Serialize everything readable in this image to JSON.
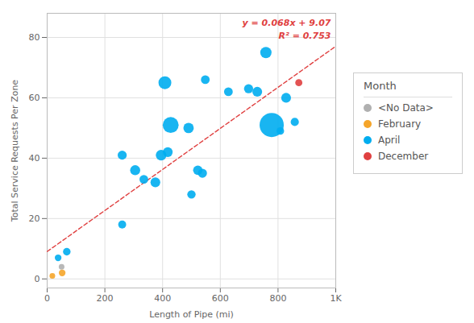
{
  "chart_data": {
    "type": "scatter",
    "xlabel": "Length of Pipe (mi)",
    "ylabel": "Total Service Requests Per Zone",
    "xlim": [
      0,
      1000
    ],
    "ylim": [
      -3,
      88
    ],
    "xticks": [
      0,
      200,
      400,
      600,
      800,
      {
        "value": 1000,
        "label": "1K"
      }
    ],
    "yticks": [
      0,
      20,
      40,
      60,
      80
    ],
    "grid": true,
    "legend": "right",
    "legend_title": "Month",
    "series": [
      {
        "name": "<No Data>",
        "color": "#b0b0b0",
        "x": [
          50
        ],
        "y": [
          4
        ],
        "size": [
          25
        ]
      },
      {
        "name": "February",
        "color": "#f5a52a",
        "x": [
          18,
          52
        ],
        "y": [
          1,
          2
        ],
        "size": [
          25,
          35
        ]
      },
      {
        "name": "April",
        "color": "#00adef",
        "x": [
          38,
          68,
          260,
          260,
          305,
          335,
          375,
          395,
          408,
          418,
          428,
          490,
          500,
          522,
          538,
          548,
          628,
          698,
          728,
          758,
          778,
          808,
          828,
          858
        ],
        "y": [
          7,
          9,
          18,
          41,
          36,
          33,
          32,
          41,
          65,
          42,
          51,
          50,
          28,
          36,
          35,
          66,
          62,
          63,
          62,
          75,
          51,
          49,
          60,
          52
        ],
        "size": [
          35,
          45,
          50,
          65,
          80,
          60,
          75,
          90,
          130,
          75,
          200,
          85,
          55,
          70,
          65,
          60,
          60,
          65,
          75,
          100,
          460,
          45,
          75,
          52
        ]
      },
      {
        "name": "December",
        "color": "#e04040",
        "x": [
          872
        ],
        "y": [
          65
        ],
        "size": [
          40
        ]
      }
    ],
    "regression_line": {
      "x": [
        0,
        1000
      ],
      "y": [
        9.07,
        77.07
      ],
      "color": "#e04040",
      "line_style": "dashed"
    },
    "annotations": [
      {
        "text": "y = 0.068x + 9.07",
        "color": "#e04040"
      },
      {
        "text": "R² = 0.753",
        "color": "#e04040"
      }
    ]
  }
}
